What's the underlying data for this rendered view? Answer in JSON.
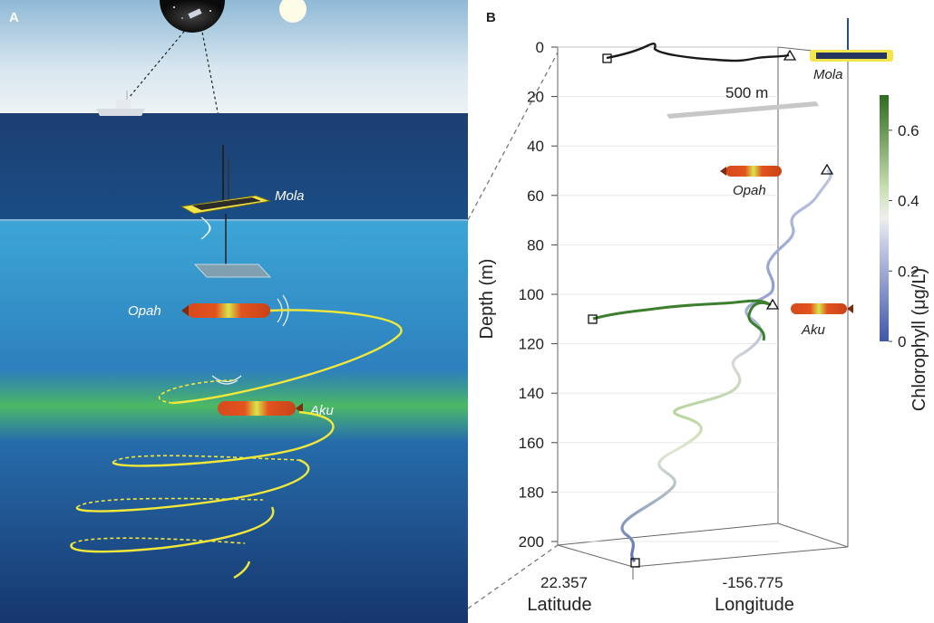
{
  "panels": {
    "a": {
      "letter": "A"
    },
    "b": {
      "letter": "B"
    }
  },
  "vehicles": {
    "mola": "Mola",
    "opah": "Opah",
    "aku": "Aku"
  },
  "colors": {
    "surface_track": "#1a1a1a",
    "opah_track_low": "#5a6fb0",
    "aku_track": "#3d7f2c",
    "chl_high": "#2f6b1e",
    "chl_mid": "#e8e8e8",
    "chl_low": "#3f57a8",
    "vehicle_body": "#e2531f",
    "vehicle_band": "#d8e64a",
    "surface_float": "#f4e64a"
  },
  "scale_bar": {
    "label": "500 m"
  },
  "icons": [
    "satellite-icon",
    "ship-icon",
    "sun-icon"
  ],
  "chart_data": {
    "type": "line3d",
    "ylabel": "Depth (m)",
    "depth_ticks": [
      0,
      20,
      40,
      60,
      80,
      100,
      120,
      140,
      160,
      180,
      200
    ],
    "ylim": [
      0,
      200
    ],
    "xlabel": "Latitude",
    "x_tick": "22.357",
    "zlabel": "Longitude",
    "z_tick": "-156.775",
    "colorbar": {
      "label": "Chlorophyll (μg/L)",
      "ticks": [
        "0",
        "0.2",
        "0.4",
        "0.6"
      ],
      "range": [
        0,
        0.7
      ]
    },
    "series": [
      {
        "name": "Mola",
        "depth_range": [
          0,
          5
        ]
      },
      {
        "name": "Opah",
        "depth_range": [
          50,
          205
        ]
      },
      {
        "name": "Aku",
        "depth_range": [
          97,
          112
        ]
      }
    ],
    "markers": {
      "start": "square",
      "end": "triangle"
    }
  }
}
